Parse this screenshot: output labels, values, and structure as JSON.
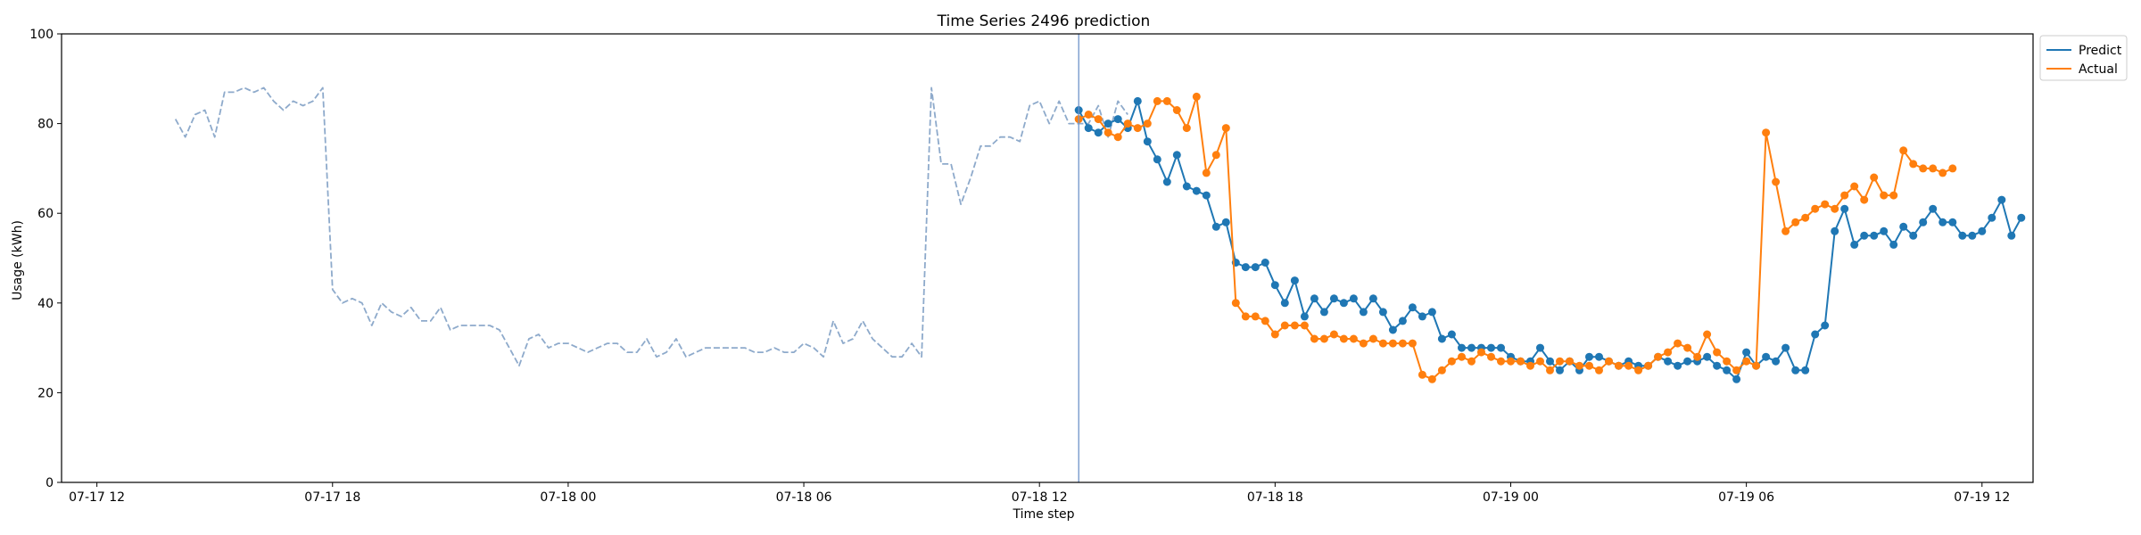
{
  "chart_data": {
    "type": "line",
    "title": "Time Series 2496 prediction",
    "xlabel": "Time step",
    "ylabel": "Usage (kWh)",
    "ylim": [
      0,
      100
    ],
    "yticks": [
      0,
      20,
      40,
      60,
      80,
      100
    ],
    "xticks": [
      "07-17 12",
      "07-17 18",
      "07-18 00",
      "07-18 06",
      "07-18 12",
      "07-18 18",
      "07-19 00",
      "07-19 06",
      "07-19 12"
    ],
    "grid": false,
    "legend_position": "upper right, outside plot",
    "forecast_start": "07-18 13:00",
    "series": [
      {
        "name": "history",
        "color": "#8eaacb",
        "style": "dashed",
        "start": "07-17 14:00",
        "values": [
          81,
          77,
          82,
          83,
          77,
          87,
          87,
          88,
          87,
          88,
          85,
          83,
          85,
          84,
          85,
          88,
          43,
          40,
          41,
          40,
          35,
          40,
          38,
          37,
          39,
          36,
          36,
          39,
          34,
          35,
          35,
          35,
          35,
          34,
          30,
          26,
          32,
          33,
          30,
          31,
          31,
          30,
          29,
          30,
          31,
          31,
          29,
          29,
          32,
          28,
          29,
          32,
          28,
          29,
          30,
          30,
          30,
          30,
          30,
          29,
          29,
          30,
          29,
          29,
          31,
          30,
          28,
          36,
          31,
          32,
          36,
          32,
          30,
          28,
          28,
          31,
          28,
          88,
          71,
          71,
          62,
          68,
          75,
          75,
          77,
          77,
          76,
          84,
          85,
          80,
          85,
          80,
          80,
          80,
          84,
          77,
          85,
          82
        ]
      },
      {
        "name": "Predict",
        "color": "#1f77b4",
        "style": "solid-markers",
        "start": "07-18 13:00",
        "values": [
          83,
          79,
          78,
          80,
          81,
          79,
          85,
          76,
          72,
          67,
          73,
          66,
          65,
          64,
          57,
          58,
          49,
          48,
          48,
          49,
          44,
          40,
          45,
          37,
          41,
          38,
          41,
          40,
          41,
          38,
          41,
          38,
          34,
          36,
          39,
          37,
          38,
          32,
          33,
          30,
          30,
          30,
          30,
          30,
          28,
          27,
          27,
          30,
          27,
          25,
          27,
          25,
          28,
          28,
          27,
          26,
          27,
          26,
          26,
          28,
          27,
          26,
          27,
          27,
          28,
          26,
          25,
          23,
          29,
          26,
          28,
          27,
          30,
          25,
          25,
          33,
          35,
          56,
          61,
          53,
          55,
          55,
          56,
          53,
          57,
          55,
          58,
          61,
          58,
          58,
          55,
          55,
          56,
          59,
          63,
          55,
          59
        ]
      },
      {
        "name": "Actual",
        "color": "#ff7f0e",
        "style": "solid-markers",
        "start": "07-18 13:00",
        "values": [
          81,
          82,
          81,
          78,
          77,
          80,
          79,
          80,
          85,
          85,
          83,
          79,
          86,
          69,
          73,
          79,
          40,
          37,
          37,
          36,
          33,
          35,
          35,
          35,
          32,
          32,
          33,
          32,
          32,
          31,
          32,
          31,
          31,
          31,
          31,
          24,
          23,
          25,
          27,
          28,
          27,
          29,
          28,
          27,
          27,
          27,
          26,
          27,
          25,
          27,
          27,
          26,
          26,
          25,
          27,
          26,
          26,
          25,
          26,
          28,
          29,
          31,
          30,
          28,
          33,
          29,
          27,
          25,
          27,
          26,
          78,
          67,
          56,
          58,
          59,
          61,
          62,
          61,
          64,
          66,
          63,
          68,
          64,
          64,
          74,
          71,
          70,
          70,
          69,
          70
        ]
      }
    ]
  }
}
